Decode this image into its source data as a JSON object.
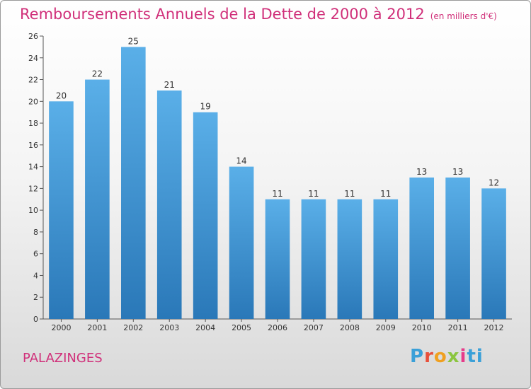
{
  "chart_data": {
    "type": "bar",
    "title": "Remboursements Annuels de la Dette de 2000 à 2012",
    "subtitle": "(en milliers d'€)",
    "categories": [
      "2000",
      "2001",
      "2002",
      "2003",
      "2004",
      "2005",
      "2006",
      "2007",
      "2008",
      "2009",
      "2010",
      "2011",
      "2012"
    ],
    "values": [
      20,
      22,
      25,
      21,
      19,
      14,
      11,
      11,
      11,
      11,
      13,
      13,
      12
    ],
    "ylim": [
      0,
      26
    ],
    "yticks": [
      0,
      2,
      4,
      6,
      8,
      10,
      12,
      14,
      16,
      18,
      20,
      22,
      24,
      26
    ],
    "grid": false,
    "bar_color": "#3d8fd0"
  },
  "place_name": "PALAZINGES",
  "logo": {
    "text": "Proxiti"
  }
}
